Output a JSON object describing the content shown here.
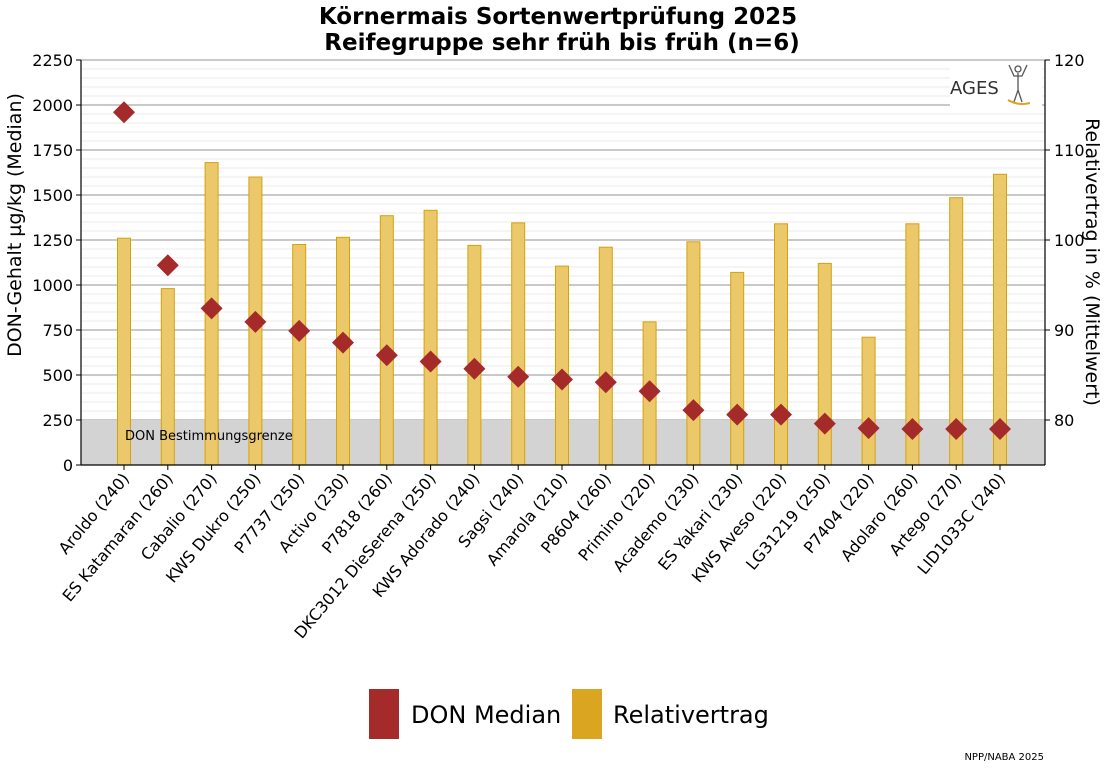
{
  "chart_data": {
    "type": "bar",
    "title_line1": "Körnermais Sortenwertprüfung 2025",
    "title_line2": "Reifegruppe sehr früh bis früh (n=6)",
    "ylabel_left": "DON-Gehalt µg/kg (Median)",
    "ylabel_right": "Relativertrag in % (Mittelwert)",
    "ylim_left": [
      0,
      2250
    ],
    "ylim_right": [
      75,
      120
    ],
    "left_ticks": [
      "0",
      "250",
      "500",
      "750",
      "1000",
      "1250",
      "1500",
      "1750",
      "2000",
      "2250"
    ],
    "right_ticks": [
      "80",
      "90",
      "100",
      "110",
      "120"
    ],
    "threshold_value": 250,
    "threshold_label": "DON Bestimmungsgrenze",
    "categories": [
      "Aroldo (240)",
      "ES Katamaran (260)",
      "Cabalio (270)",
      "KWS Dukro (250)",
      "P7737 (250)",
      "Activo (230)",
      "P7818 (260)",
      "DKC3012 DieSerena (250)",
      "KWS Adorado (240)",
      "Sagsi (240)",
      "Amarola (210)",
      "P8604 (260)",
      "Primino (220)",
      "Academo (230)",
      "ES Yakari (230)",
      "KWS Aveso (220)",
      "LG31219 (250)",
      "P7404 (220)",
      "Adolaro (260)",
      "Artego (270)",
      "LID1033C (240)"
    ],
    "series": [
      {
        "name": "DON Median",
        "axis": "left",
        "marker": "diamond",
        "color": "#A52A2A",
        "values": [
          1960,
          1110,
          870,
          795,
          745,
          680,
          610,
          575,
          535,
          490,
          475,
          460,
          410,
          305,
          280,
          280,
          230,
          205,
          200,
          200,
          200
        ]
      },
      {
        "name": "Relativertrag",
        "axis": "right",
        "marker": "bar",
        "color": "#DAA520",
        "values": [
          100.2,
          94.6,
          108.6,
          107.0,
          99.5,
          100.3,
          102.7,
          103.3,
          99.4,
          101.9,
          97.1,
          99.2,
          90.9,
          99.8,
          96.4,
          101.8,
          97.4,
          89.2,
          101.8,
          104.7,
          107.3
        ]
      }
    ],
    "legend": {
      "position": "bottom-center",
      "items": [
        "DON Median",
        "Relativertrag"
      ]
    },
    "logo_text": "AGES",
    "source_note": "NPP/NABA 2025"
  },
  "colors": {
    "don": "#A52A2A",
    "bar_fill": "#EBC96B",
    "bar_stroke": "#D4A20C",
    "legend_bar": "#DAA520",
    "threshold_band": "#D3D3D3",
    "grid_major": "#A9A9A9",
    "grid_minor": "#EBEBEB"
  }
}
